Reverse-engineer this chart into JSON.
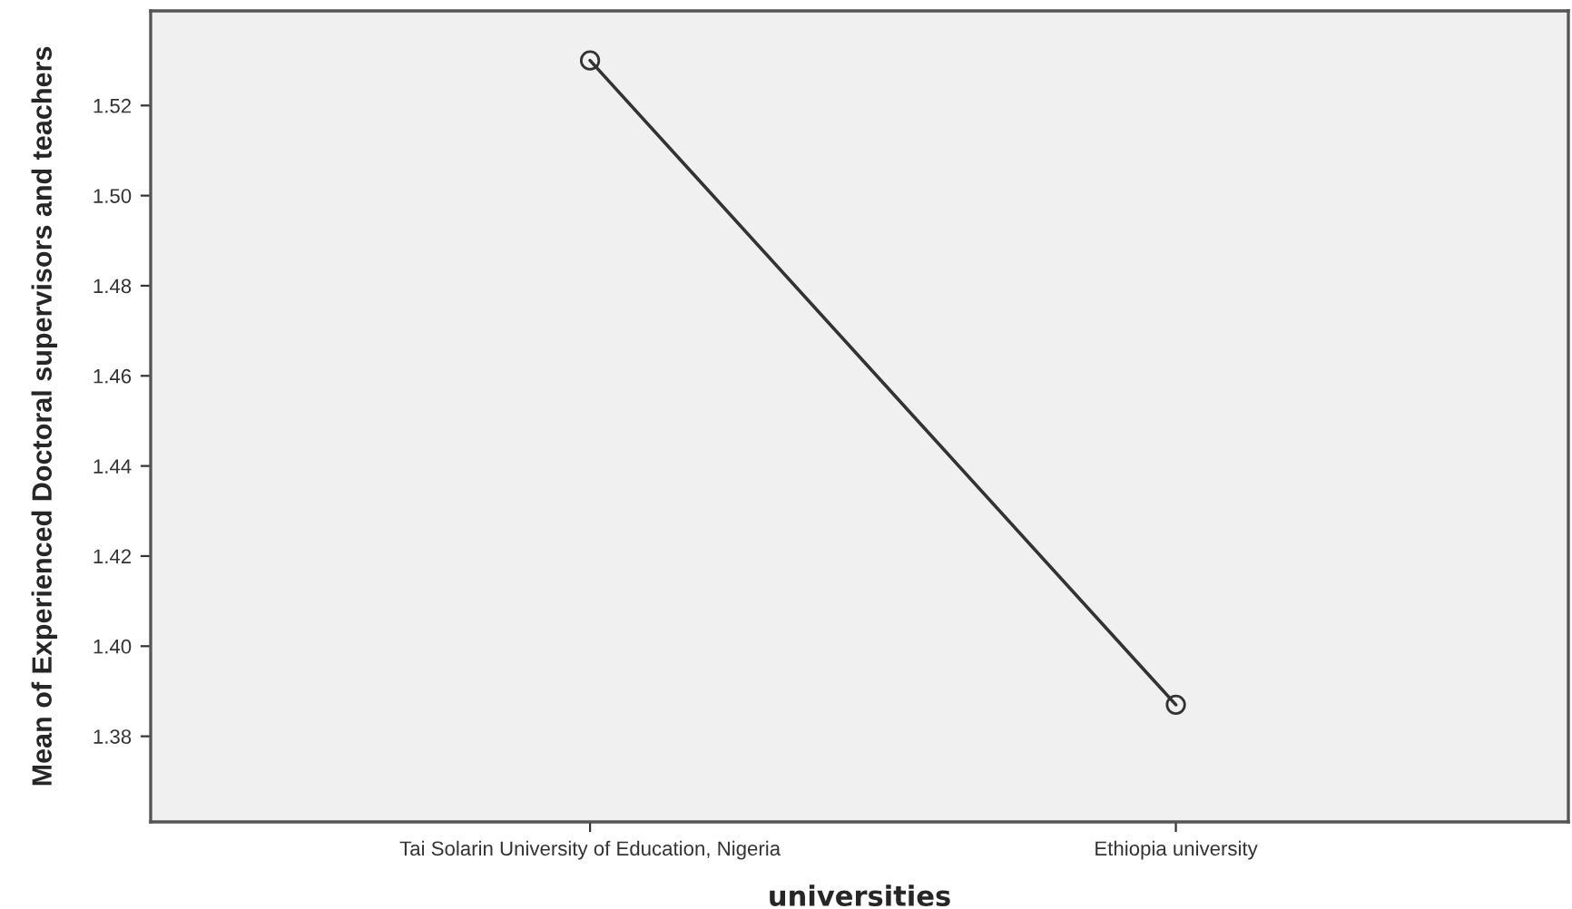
{
  "chart_data": {
    "type": "line",
    "xlabel": "universities",
    "ylabel": "Mean of Experienced Doctoral supervisors and teachers",
    "categories": [
      "Tai Solarin University of Education, Nigeria",
      "Ethiopia university"
    ],
    "series": [
      {
        "color": "#333333",
        "values": [
          1.53,
          1.387
        ]
      }
    ],
    "ylim": [
      1.361,
      1.541
    ],
    "yticks": [
      1.38,
      {
        "value": 1.4,
        "label": "1.40"
      },
      1.42,
      1.44,
      1.46,
      1.48,
      {
        "value": 1.5,
        "label": "1.50"
      },
      1.52
    ],
    "marker": "circle",
    "line_style": "solid",
    "grid": false,
    "legend": false
  }
}
